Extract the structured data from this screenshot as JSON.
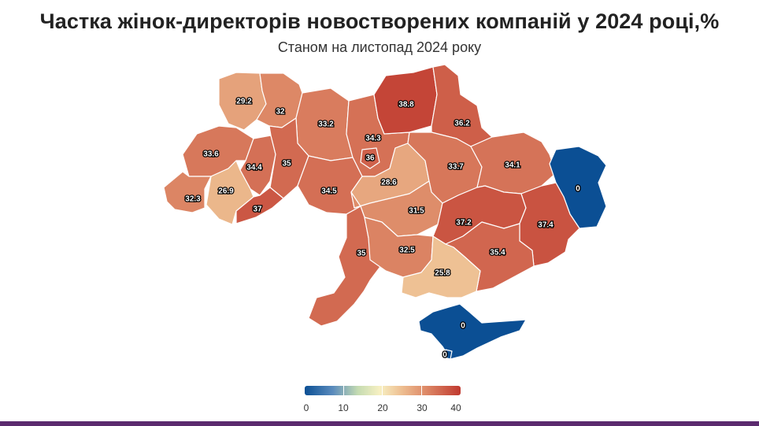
{
  "title": "Частка жінок-директорів новостворених компаній у 2024 році,%",
  "subtitle": "Станом на листопад 2024 року",
  "colors": {
    "high": "#c0392f",
    "mid": "#f7f0c2",
    "low": "#0b4f94",
    "bottom_bar": "#5b2a6e"
  },
  "legend": {
    "min": 0,
    "max": 40,
    "ticks": [
      "0",
      "10",
      "20",
      "30",
      "40"
    ]
  },
  "regions": [
    {
      "id": "volyn",
      "value": "29.2"
    },
    {
      "id": "rivne",
      "value": "32"
    },
    {
      "id": "zhytomyr",
      "value": "33.2"
    },
    {
      "id": "kyiv-region",
      "value": "34.3"
    },
    {
      "id": "kyiv-city",
      "value": "36"
    },
    {
      "id": "chernihiv",
      "value": "38.8"
    },
    {
      "id": "sumy",
      "value": "36.2"
    },
    {
      "id": "lviv",
      "value": "33.6"
    },
    {
      "id": "ternopil",
      "value": "34.4"
    },
    {
      "id": "khmelnytskyi",
      "value": "35"
    },
    {
      "id": "vinnytsia",
      "value": "34.5"
    },
    {
      "id": "cherkasy",
      "value": "28.6"
    },
    {
      "id": "poltava",
      "value": "33.7"
    },
    {
      "id": "kharkiv",
      "value": "34.1"
    },
    {
      "id": "luhansk",
      "value": "0"
    },
    {
      "id": "zakarpattia",
      "value": "32.3"
    },
    {
      "id": "ivano-frankivsk",
      "value": "26.9"
    },
    {
      "id": "chernivtsi",
      "value": "37"
    },
    {
      "id": "kirovohrad",
      "value": "31.5"
    },
    {
      "id": "dnipropetrovsk",
      "value": "37.2"
    },
    {
      "id": "donetsk",
      "value": "37.4"
    },
    {
      "id": "odesa",
      "value": "35"
    },
    {
      "id": "mykolaiv",
      "value": "32.5"
    },
    {
      "id": "zaporizhzhia",
      "value": "35.4"
    },
    {
      "id": "kherson",
      "value": "25.8"
    },
    {
      "id": "crimea",
      "value": "0"
    },
    {
      "id": "sevastopol",
      "value": "0"
    }
  ]
}
